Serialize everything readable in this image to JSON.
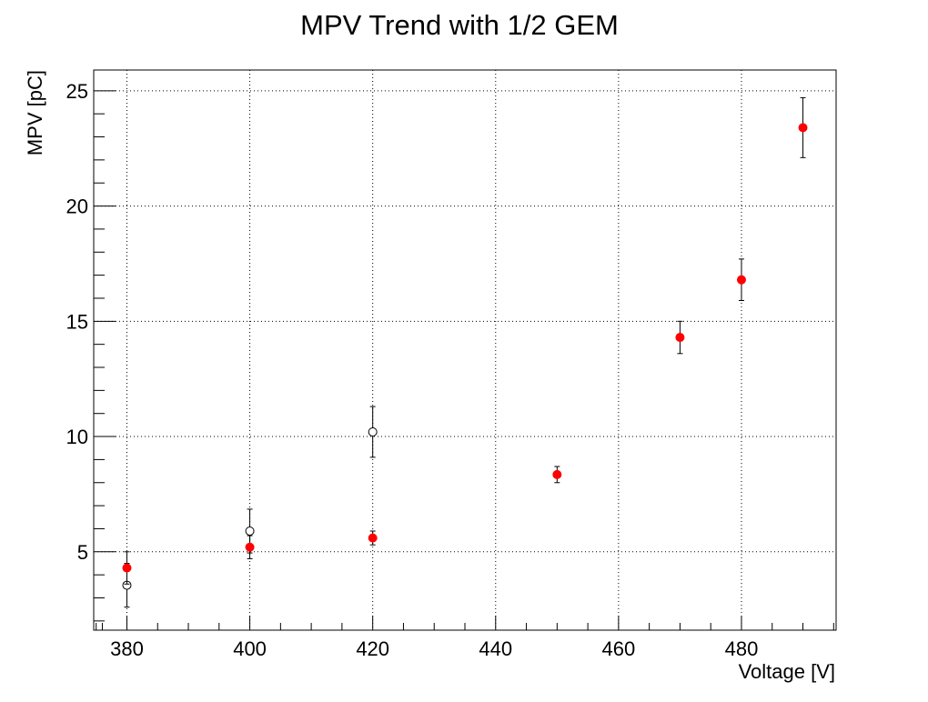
{
  "chart_data": {
    "type": "scatter",
    "title": "MPV Trend with 1/2 GEM",
    "xlabel": "Voltage [V]",
    "ylabel": "MPV [pC]",
    "xlim": [
      374.6,
      495.4
    ],
    "ylim": [
      1.6,
      25.9
    ],
    "x_ticks": [
      380,
      400,
      420,
      440,
      460,
      480
    ],
    "y_ticks": [
      5,
      10,
      15,
      20,
      25
    ],
    "grid": true,
    "legend": "none",
    "series": [
      {
        "marker": "open-circle",
        "color": "#000000",
        "points": [
          {
            "x": 380,
            "y": 3.55,
            "err": 0.95
          },
          {
            "x": 400,
            "y": 5.9,
            "err": 0.95
          },
          {
            "x": 420,
            "y": 10.2,
            "err": 1.1
          }
        ]
      },
      {
        "marker": "filled-circle",
        "color": "#ff0000",
        "points": [
          {
            "x": 380,
            "y": 4.3,
            "err": 0.7
          },
          {
            "x": 400,
            "y": 5.2,
            "err": 0.5
          },
          {
            "x": 420,
            "y": 5.6,
            "err": 0.3
          },
          {
            "x": 450,
            "y": 8.35,
            "err": 0.35
          },
          {
            "x": 470,
            "y": 14.3,
            "err": 0.7
          },
          {
            "x": 480,
            "y": 16.8,
            "err": 0.9
          },
          {
            "x": 490,
            "y": 23.4,
            "err": 1.3
          }
        ]
      }
    ]
  }
}
